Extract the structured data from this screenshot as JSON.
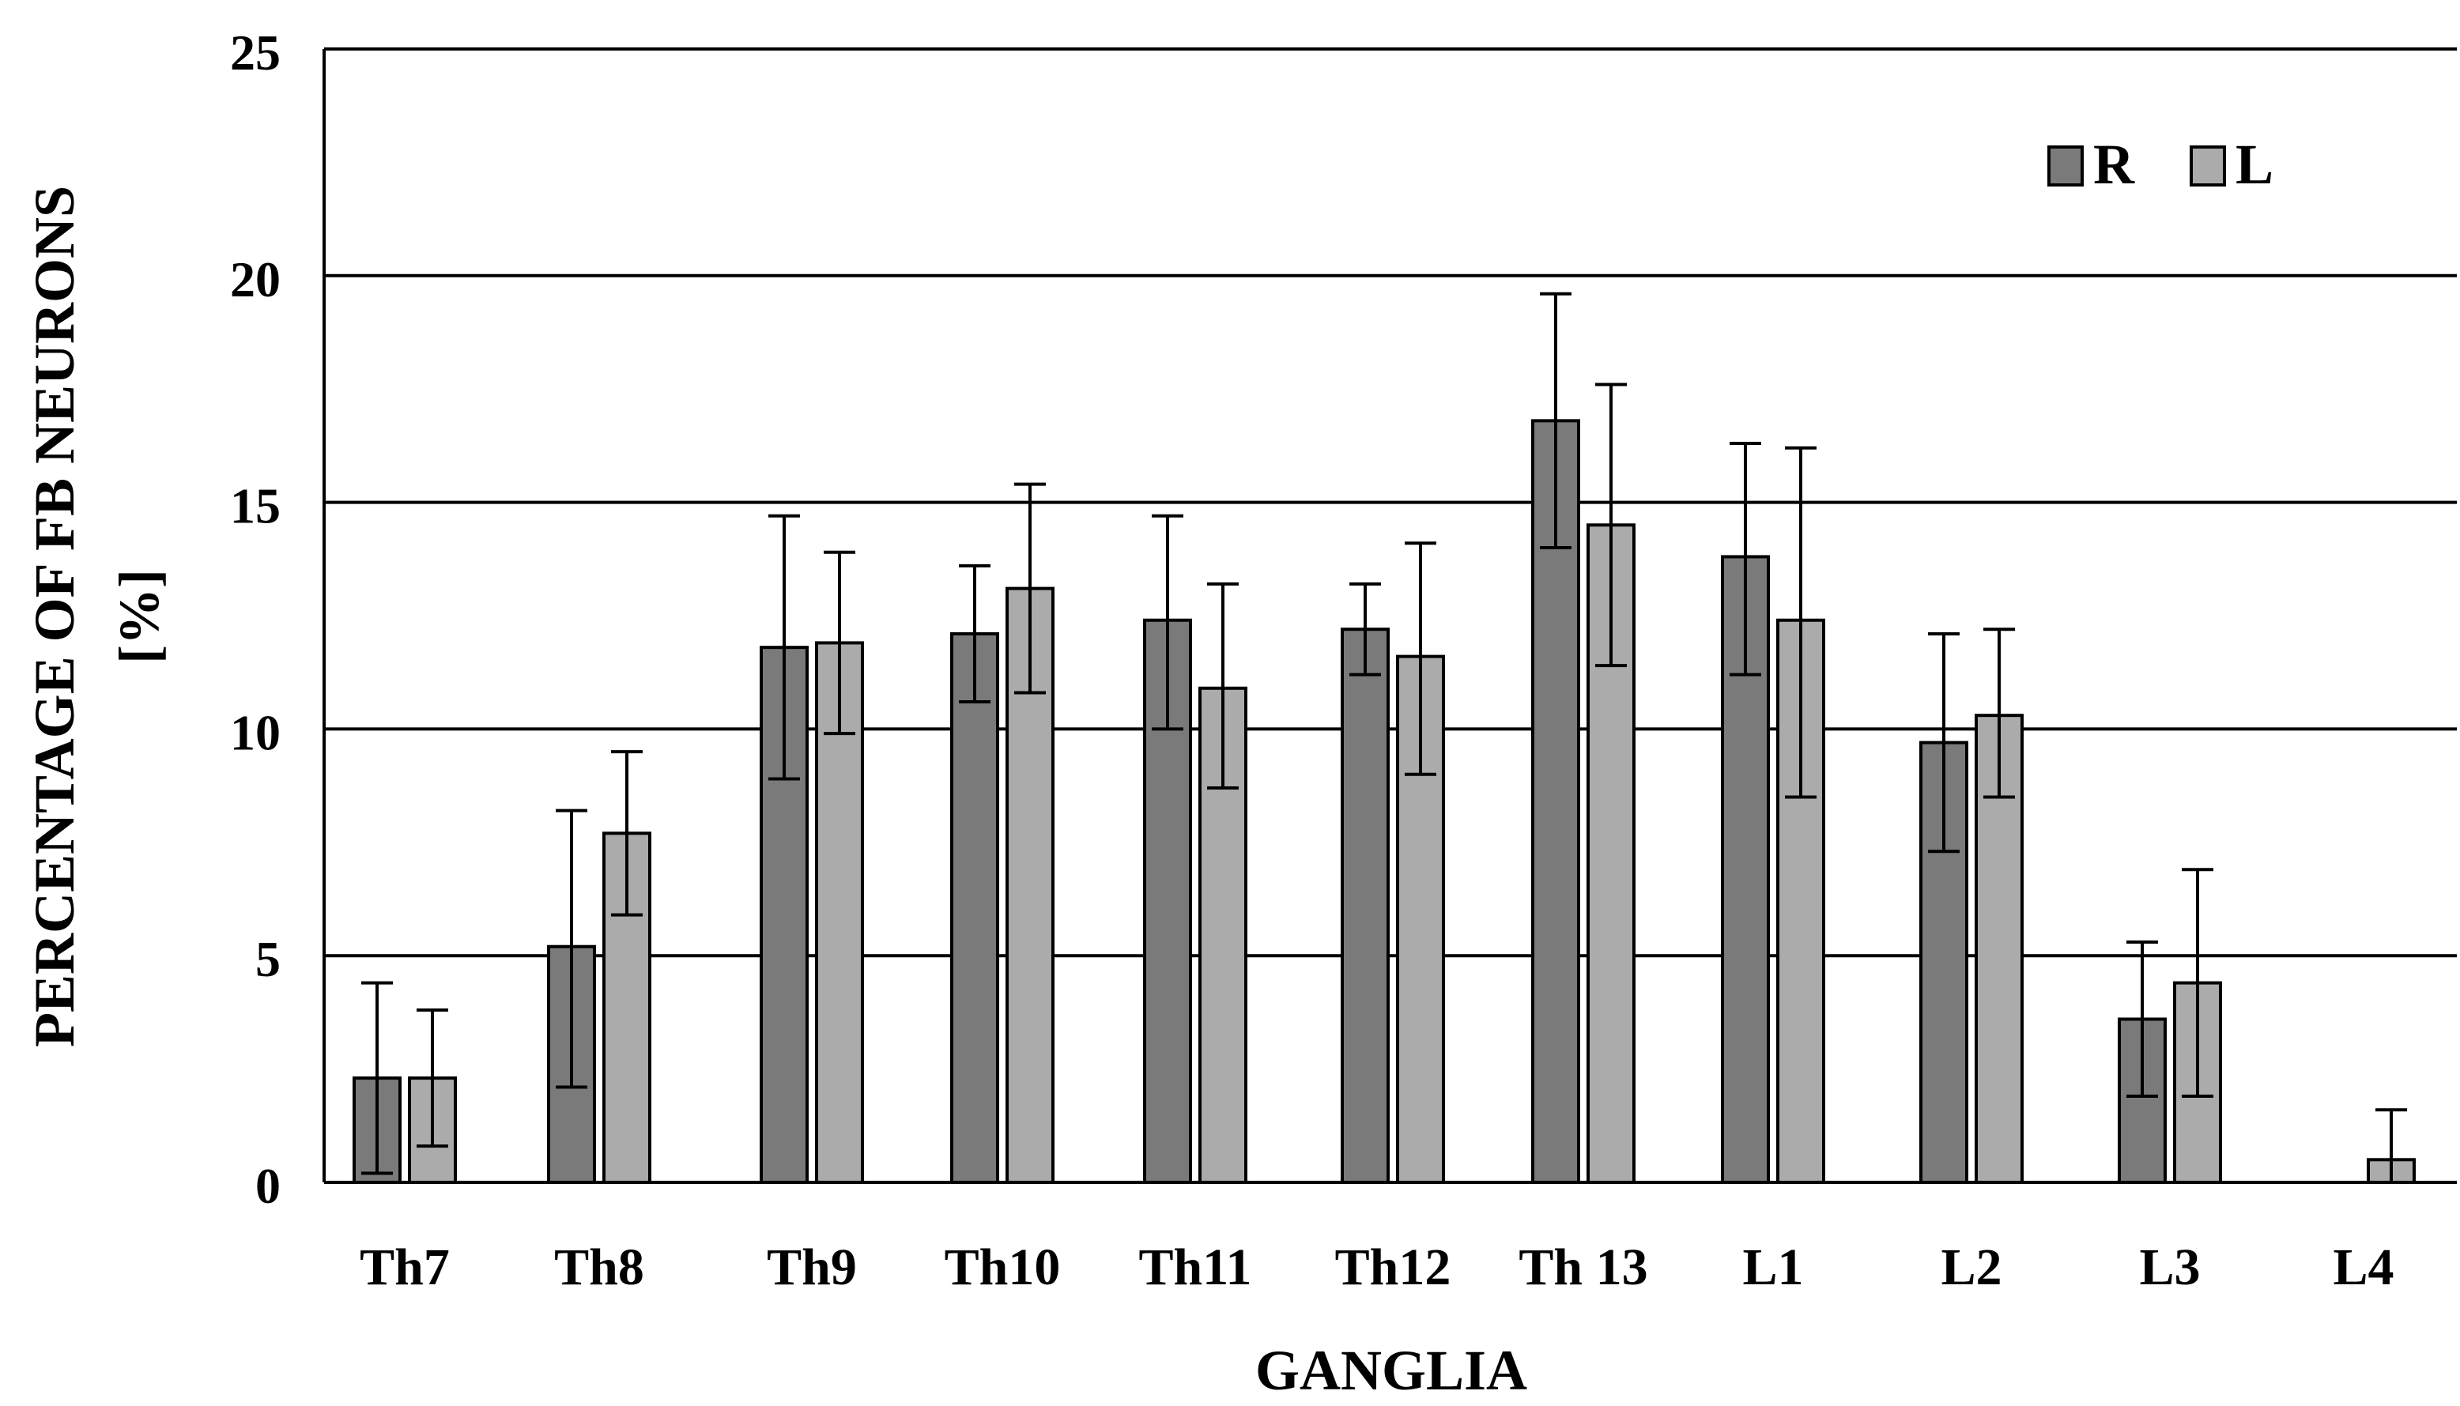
{
  "chart_data": {
    "type": "bar",
    "title": "",
    "xlabel": "GANGLIA",
    "ylabel_lines": [
      "PERCENTAGE  OF FB NEURONS",
      "[%]"
    ],
    "ylim": [
      0,
      25
    ],
    "yticks": [
      0,
      5,
      10,
      15,
      20,
      25
    ],
    "grid": true,
    "legend_position": "top-right",
    "categories": [
      "Th7",
      "Th8",
      "Th9",
      "Th10",
      "Th11",
      "Th12",
      "Th 13",
      "L1",
      "L2",
      "L3",
      "L4"
    ],
    "series": [
      {
        "name": "R",
        "color": "#7a7a7a",
        "values": [
          2.3,
          5.2,
          11.8,
          12.1,
          12.4,
          12.2,
          16.8,
          13.8,
          9.7,
          3.6,
          0.0
        ],
        "error_low": [
          0.2,
          2.1,
          8.9,
          10.6,
          10.0,
          11.2,
          14.0,
          11.2,
          7.3,
          1.9,
          null
        ],
        "error_high": [
          4.4,
          8.2,
          14.7,
          13.6,
          14.7,
          13.2,
          19.6,
          16.3,
          12.1,
          5.3,
          null
        ]
      },
      {
        "name": "L",
        "color": "#ababab",
        "values": [
          2.3,
          7.7,
          11.9,
          13.1,
          10.9,
          11.6,
          14.5,
          12.4,
          10.3,
          4.4,
          0.5
        ],
        "error_low": [
          0.8,
          5.9,
          9.9,
          10.8,
          8.7,
          9.0,
          11.4,
          8.5,
          8.5,
          1.9,
          0.0
        ],
        "error_high": [
          3.8,
          9.5,
          13.9,
          15.4,
          13.2,
          14.1,
          17.6,
          16.2,
          12.2,
          6.9,
          1.6
        ]
      }
    ]
  }
}
